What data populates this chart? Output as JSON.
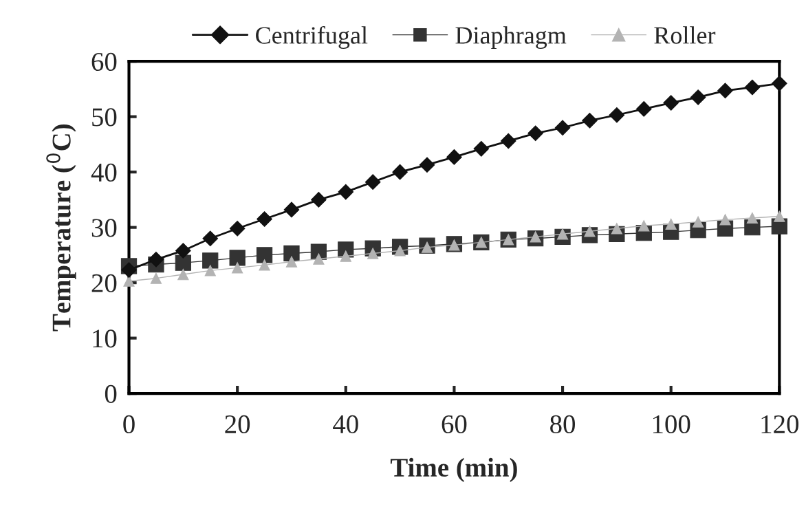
{
  "chart_data": {
    "type": "line",
    "xlabel": "Time (min)",
    "ylabel": "Temperature ($^{0}$C)",
    "x": [
      0,
      5,
      10,
      15,
      20,
      25,
      30,
      35,
      40,
      45,
      50,
      55,
      60,
      65,
      70,
      75,
      80,
      85,
      90,
      95,
      100,
      105,
      110,
      115,
      120
    ],
    "xlim": [
      0,
      120
    ],
    "xticks": [
      0,
      20,
      40,
      60,
      80,
      100,
      120
    ],
    "ylim": [
      0,
      60
    ],
    "yticks": [
      0,
      10,
      20,
      30,
      40,
      50,
      60
    ],
    "grid": false,
    "legend": "top",
    "series": [
      {
        "name": "Centrifugal",
        "color": "#111111",
        "marker": "diamond",
        "values": [
          22.3,
          24.2,
          25.8,
          28,
          29.8,
          31.5,
          33.2,
          35,
          36.4,
          38.2,
          40,
          41.3,
          42.7,
          44.2,
          45.6,
          47,
          48,
          49.3,
          50.3,
          51.4,
          52.5,
          53.5,
          54.7,
          55.3,
          56
        ]
      },
      {
        "name": "Diaphragm",
        "color": "#333333",
        "marker": "square",
        "values": [
          23,
          23.3,
          23.6,
          24,
          24.5,
          25,
          25.3,
          25.6,
          26,
          26.2,
          26.5,
          26.7,
          27,
          27.3,
          27.8,
          28,
          28.3,
          28.6,
          28.8,
          29,
          29.2,
          29.5,
          29.8,
          30,
          30.2
        ]
      },
      {
        "name": "Roller",
        "color": "#b3b3b3",
        "marker": "triangle",
        "values": [
          20.3,
          20.8,
          21.5,
          22.2,
          22.7,
          23.2,
          23.8,
          24.3,
          24.8,
          25.3,
          25.8,
          26.4,
          26.8,
          27.3,
          27.8,
          28.3,
          28.8,
          29.3,
          29.8,
          30.3,
          30.6,
          31,
          31.4,
          31.7,
          32
        ]
      }
    ]
  }
}
